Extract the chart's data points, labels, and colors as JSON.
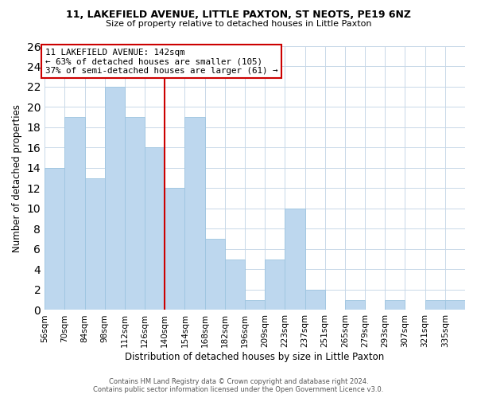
{
  "title": "11, LAKEFIELD AVENUE, LITTLE PAXTON, ST NEOTS, PE19 6NZ",
  "subtitle": "Size of property relative to detached houses in Little Paxton",
  "xlabel": "Distribution of detached houses by size in Little Paxton",
  "ylabel": "Number of detached properties",
  "bin_labels": [
    "56sqm",
    "70sqm",
    "84sqm",
    "98sqm",
    "112sqm",
    "126sqm",
    "140sqm",
    "154sqm",
    "168sqm",
    "182sqm",
    "196sqm",
    "209sqm",
    "223sqm",
    "237sqm",
    "251sqm",
    "265sqm",
    "279sqm",
    "293sqm",
    "307sqm",
    "321sqm",
    "335sqm"
  ],
  "counts": [
    14,
    19,
    13,
    22,
    19,
    16,
    12,
    19,
    7,
    5,
    1,
    5,
    10,
    2,
    0,
    1,
    0,
    1,
    0,
    1,
    1
  ],
  "bar_color": "#BDD7EE",
  "bar_edgecolor": "#9EC5E0",
  "vline_index": 6,
  "vline_color": "#cc0000",
  "annotation_title": "11 LAKEFIELD AVENUE: 142sqm",
  "annotation_line1": "← 63% of detached houses are smaller (105)",
  "annotation_line2": "37% of semi-detached houses are larger (61) →",
  "annotation_box_edgecolor": "#cc0000",
  "annotation_box_facecolor": "#ffffff",
  "ylim": [
    0,
    26
  ],
  "yticks": [
    0,
    2,
    4,
    6,
    8,
    10,
    12,
    14,
    16,
    18,
    20,
    22,
    24,
    26
  ],
  "footer1": "Contains HM Land Registry data © Crown copyright and database right 2024.",
  "footer2": "Contains public sector information licensed under the Open Government Licence v3.0.",
  "bg_color": "#ffffff",
  "grid_color": "#c8d8e8",
  "title_fontsize": 9,
  "subtitle_fontsize": 8
}
